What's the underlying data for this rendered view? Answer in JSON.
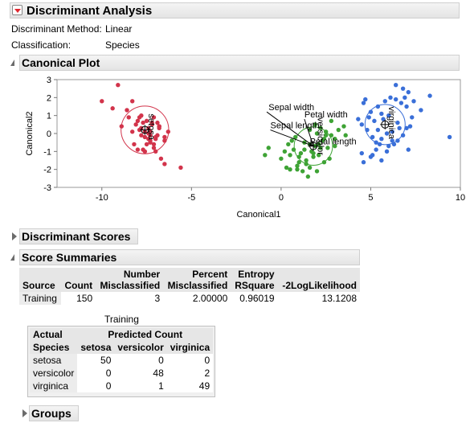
{
  "report": {
    "title": "Discriminant Analysis",
    "method_label": "Discriminant Method:",
    "method_value": "Linear",
    "classification_label": "Classification:",
    "classification_value": "Species"
  },
  "canonical_plot": {
    "title": "Canonical Plot"
  },
  "chart_data": {
    "type": "scatter",
    "title": "",
    "xlabel": "Canonical1",
    "ylabel": "Canonical2",
    "xlim": [
      -12.5,
      10
    ],
    "ylim": [
      -3,
      3
    ],
    "xticks": [
      -10,
      -5,
      0,
      5,
      10
    ],
    "yticks": [
      3,
      2,
      1,
      0,
      -1,
      -2,
      -3
    ],
    "xtick_labels": [
      "-10",
      "-5",
      "0",
      "5",
      "10"
    ],
    "ytick_labels": [
      "3",
      "2",
      "1",
      "0",
      "-1",
      "-2",
      "-3"
    ],
    "grid": false,
    "series": [
      {
        "name": "setosa",
        "color": "#d2344b",
        "centroid": [
          -7.6,
          0.2
        ],
        "circle_radius_x": 1.33,
        "x": [
          -9.1,
          -10.0,
          -9.4,
          -8.6,
          -8.5,
          -8.3,
          -8.9,
          -7.8,
          -8.0,
          -7.7,
          -7.9,
          -7.5,
          -7.2,
          -7.6,
          -7.4,
          -6.8,
          -7.0,
          -7.6,
          -7.3,
          -8.2,
          -7.5,
          -7.8,
          -6.9,
          -7.4,
          -6.5,
          -7.0,
          -7.3,
          -6.9,
          -8.1,
          -8.0,
          -7.6,
          -7.1,
          -7.8,
          -7.7,
          -7.0,
          -7.1,
          -6.8,
          -7.4,
          -7.2,
          -7.3,
          -6.8,
          -6.3,
          -6.5,
          -8.3,
          -7.3,
          -7.9,
          -7.1,
          -6.7,
          -6.5,
          -5.6
        ],
        "y": [
          2.7,
          1.8,
          1.4,
          1.3,
          0.9,
          1.8,
          0.4,
          1.0,
          0.7,
          0.6,
          0.9,
          0.7,
          0.5,
          0.1,
          0.0,
          0.4,
          -0.2,
          -0.2,
          -0.4,
          -0.6,
          -0.6,
          -0.1,
          0.6,
          -0.3,
          -0.2,
          -0.3,
          -0.1,
          -0.1,
          0.5,
          -0.9,
          -1.0,
          -0.8,
          0.3,
          -0.9,
          -1.0,
          0.9,
          0.4,
          0.3,
          0.6,
          0.1,
          0.3,
          0.1,
          -0.4,
          0.1,
          -0.5,
          0.2,
          -0.6,
          -1.4,
          -1.7,
          -1.9
        ]
      },
      {
        "name": "versicolor",
        "color": "#3ea335",
        "centroid": [
          1.8,
          -0.7
        ],
        "circle_radius_x": 1.07,
        "x": [
          -0.9,
          -0.7,
          0.0,
          0.2,
          0.4,
          0.6,
          0.8,
          1.0,
          1.2,
          1.4,
          1.6,
          1.8,
          2.0,
          2.2,
          2.4,
          2.6,
          2.8,
          3.0,
          0.3,
          0.5,
          0.9,
          1.1,
          1.3,
          1.5,
          1.7,
          1.9,
          2.1,
          2.3,
          2.5,
          2.7,
          0.7,
          1.0,
          1.3,
          1.6,
          1.9,
          2.2,
          2.5,
          2.8,
          3.2,
          3.5,
          0.9,
          1.4,
          1.8,
          2.1,
          2.4,
          0.5,
          1.6,
          2.0,
          3.0,
          3.6
        ],
        "y": [
          -1.2,
          -0.8,
          -1.4,
          -1.0,
          -0.6,
          -0.4,
          -0.2,
          -1.6,
          -2.1,
          -1.5,
          -1.9,
          -1.3,
          -2.1,
          -0.8,
          -1.6,
          -0.8,
          -0.1,
          -0.3,
          -1.9,
          -1.2,
          -1.8,
          -1.1,
          -0.9,
          -2.4,
          -1.0,
          -0.7,
          -0.6,
          -0.4,
          0.1,
          -1.4,
          -0.9,
          -1.3,
          -0.5,
          0.2,
          0.5,
          0.3,
          -0.1,
          0.7,
          0.2,
          0.4,
          -2.0,
          -1.7,
          -1.1,
          -1.2,
          -0.3,
          -2.0,
          -0.6,
          0.0,
          -0.7,
          -0.1
        ]
      },
      {
        "name": "virginica",
        "color": "#3a6fd8",
        "centroid": [
          5.8,
          0.5
        ],
        "circle_radius_x": 1.12,
        "x": [
          6.4,
          6.8,
          6.9,
          7.1,
          7.4,
          7.8,
          8.3,
          9.4,
          7.2,
          6.6,
          6.2,
          5.9,
          5.6,
          5.3,
          5.1,
          4.8,
          4.5,
          4.3,
          5.0,
          5.4,
          5.8,
          6.1,
          6.4,
          6.7,
          7.0,
          7.3,
          6.0,
          5.6,
          5.2,
          4.9,
          4.6,
          6.3,
          6.8,
          7.1,
          5.5,
          5.9,
          6.2,
          4.6,
          5.1,
          5.3,
          5.6,
          6.5,
          5.7,
          4.7,
          5.4,
          6.0,
          6.5,
          7.0,
          4.5,
          5.0
        ],
        "y": [
          2.7,
          2.5,
          2.0,
          2.3,
          1.8,
          1.3,
          2.1,
          -0.2,
          0.4,
          0.3,
          0.1,
          0.0,
          -0.3,
          -0.5,
          -0.2,
          0.2,
          0.5,
          0.8,
          1.2,
          1.5,
          1.8,
          2.0,
          1.9,
          1.7,
          1.5,
          0.9,
          1.0,
          1.1,
          0.7,
          0.9,
          1.7,
          -0.6,
          -0.1,
          -0.9,
          -0.6,
          -1.0,
          -0.4,
          -1.6,
          -1.2,
          -0.9,
          -1.5,
          0.6,
          0.8,
          1.9,
          0.2,
          -0.7,
          -0.4,
          0.3,
          -1.1,
          -1.3
        ]
      }
    ],
    "biplot_rays": [
      {
        "label": "Sepal width",
        "tip": [
          -0.8,
          1.2
        ],
        "label_at": [
          -0.7,
          1.3
        ],
        "label_rotation": 0
      },
      {
        "label": "Sepal length",
        "tip": [
          -0.6,
          0.2
        ],
        "label_at": [
          -0.6,
          0.3
        ],
        "label_rotation": 0
      },
      {
        "label": "Petal width",
        "tip": [
          1.3,
          0.8
        ],
        "label_at": [
          1.3,
          0.9
        ],
        "label_rotation": 0
      },
      {
        "label": "Petal length",
        "tip": [
          1.5,
          -0.7
        ],
        "label_at": [
          1.6,
          -0.6
        ],
        "label_rotation": 0
      },
      {
        "label": "versicolor",
        "tip": [
          1.8,
          -0.7
        ],
        "label_at": [
          2.05,
          0.9
        ],
        "label_rotation": -90
      }
    ],
    "centroid_labels": [
      {
        "label": "setosa",
        "at": [
          -7.4,
          1.1
        ]
      },
      {
        "label": "versicolor",
        "at": [
          2.05,
          0.9
        ]
      },
      {
        "label": "virginica",
        "at": [
          6.0,
          1.5
        ]
      }
    ]
  },
  "sections": {
    "discriminant_scores": "Discriminant Scores",
    "score_summaries": "Score Summaries",
    "groups": "Groups"
  },
  "score_summary_table": {
    "headers": {
      "source": "Source",
      "count": "Count",
      "num_mis_line1": "Number",
      "num_mis_line2": "Misclassified",
      "pct_mis_line1": "Percent",
      "pct_mis_line2": "Misclassified",
      "entropy_line1": "Entropy",
      "entropy_line2": "RSquare",
      "loglik": "-2LogLikelihood"
    },
    "rows": [
      {
        "source": "Training",
        "count": "150",
        "num_mis": "3",
        "pct_mis": "2.00000",
        "entropy": "0.96019",
        "loglik": "13.1208"
      }
    ]
  },
  "training_matrix": {
    "caption": "Training",
    "header_actual": "Actual",
    "header_predicted": "Predicted Count",
    "row_header": "Species",
    "columns": [
      "setosa",
      "versicolor",
      "virginica"
    ],
    "rows": [
      {
        "species": "setosa",
        "values": [
          "50",
          "0",
          "0"
        ]
      },
      {
        "species": "versicolor",
        "values": [
          "0",
          "48",
          "2"
        ]
      },
      {
        "species": "virginica",
        "values": [
          "0",
          "1",
          "49"
        ]
      }
    ]
  }
}
